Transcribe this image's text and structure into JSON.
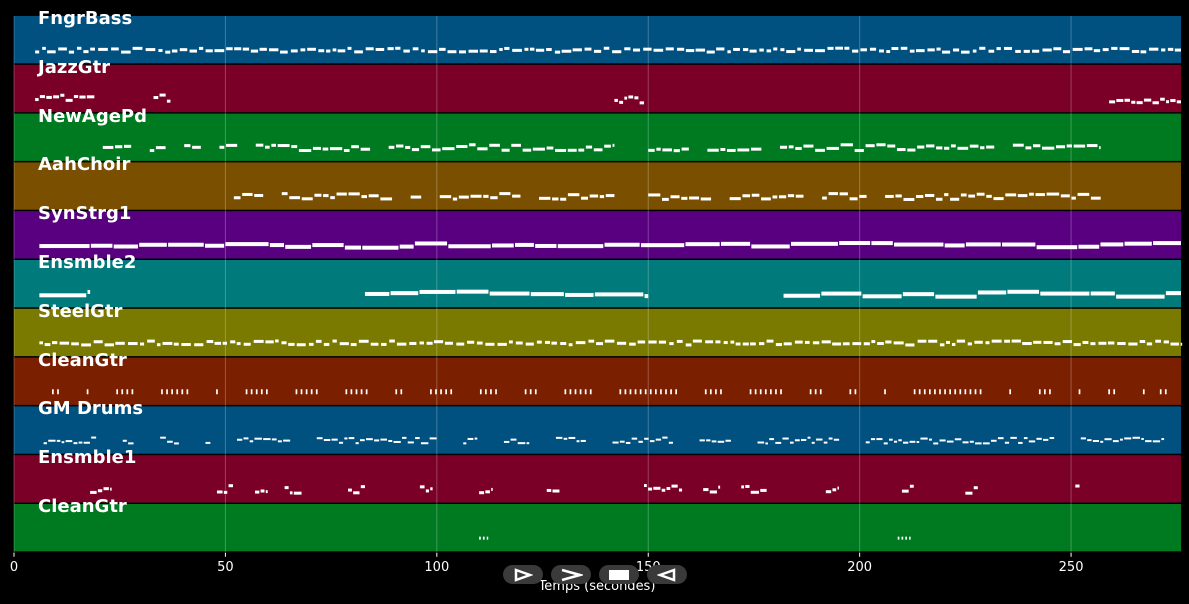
{
  "chart_data": {
    "type": "piano-roll",
    "xlabel": "Temps (secondes)",
    "xlim": [
      0,
      276
    ],
    "xticks": [
      0,
      50,
      100,
      150,
      200,
      250
    ],
    "grid": true,
    "tracks": [
      {
        "name": "FngrBass",
        "color": "#005080",
        "pattern": "dense",
        "active": [
          [
            5,
            276
          ]
        ]
      },
      {
        "name": "JazzGtr",
        "color": "#7a0028",
        "pattern": "sparse",
        "active": [
          [
            5,
            19
          ],
          [
            33,
            37
          ],
          [
            142,
            149
          ],
          [
            259,
            276
          ]
        ]
      },
      {
        "name": "NewAgePd",
        "color": "#007a20",
        "pattern": "phrases",
        "active": [
          [
            21,
            142
          ],
          [
            150,
            257
          ]
        ]
      },
      {
        "name": "AahChoir",
        "color": "#7a5000",
        "pattern": "phrases",
        "active": [
          [
            52,
            142
          ],
          [
            150,
            257
          ]
        ]
      },
      {
        "name": "SynStrg1",
        "color": "#580080",
        "pattern": "long",
        "active": [
          [
            6,
            276
          ]
        ]
      },
      {
        "name": "Ensmble2",
        "color": "#007a7a",
        "pattern": "long",
        "active": [
          [
            6,
            18
          ],
          [
            83,
            150
          ],
          [
            182,
            276
          ]
        ]
      },
      {
        "name": "SteelGtr",
        "color": "#7a7a00",
        "pattern": "dense",
        "active": [
          [
            6,
            276
          ]
        ]
      },
      {
        "name": "CleanGtr",
        "color": "#7a2000",
        "pattern": "ticks",
        "active": [
          [
            9,
            268
          ],
          [
            271,
            276
          ]
        ]
      },
      {
        "name": "GM Drums",
        "color": "#005080",
        "pattern": "drums",
        "active": [
          [
            7,
            272
          ]
        ]
      },
      {
        "name": "Ensmble1",
        "color": "#7a0028",
        "pattern": "sparse",
        "active": [
          [
            18,
            23
          ],
          [
            48,
            52
          ],
          [
            57,
            60
          ],
          [
            64,
            68
          ],
          [
            79,
            83
          ],
          [
            96,
            99
          ],
          [
            110,
            113
          ],
          [
            126,
            129
          ],
          [
            149,
            158
          ],
          [
            163,
            167
          ],
          [
            172,
            178
          ],
          [
            192,
            195
          ],
          [
            210,
            213
          ],
          [
            225,
            228
          ],
          [
            251,
            252
          ]
        ]
      },
      {
        "name": "CleanGtr",
        "color": "#007a20",
        "pattern": "tiny",
        "active": [
          [
            110,
            112
          ],
          [
            209,
            212
          ]
        ]
      }
    ]
  },
  "controls": [
    {
      "name": "play-button",
      "icon": "play-icon"
    },
    {
      "name": "fast-forward-button",
      "icon": "fast-forward-icon"
    },
    {
      "name": "stop-button",
      "icon": "stop-icon"
    },
    {
      "name": "rewind-button",
      "icon": "rewind-icon"
    }
  ]
}
